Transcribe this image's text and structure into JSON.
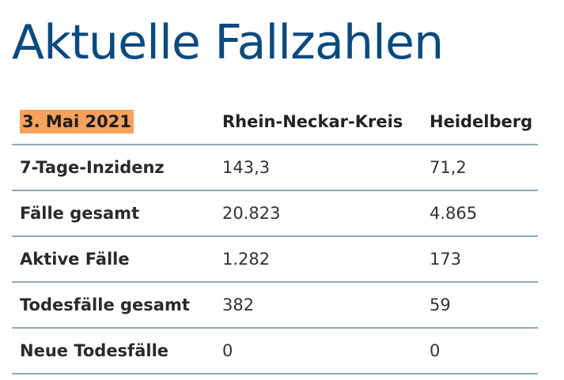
{
  "page": {
    "title": "Aktuelle Fallzahlen"
  },
  "table": {
    "date_label": "3. Mai 2021",
    "columns": [
      "Rhein-Neckar-Kreis",
      "Heidelberg"
    ],
    "rows": [
      {
        "label": "7-Tage-Inzidenz",
        "values": [
          "143,3",
          "71,2"
        ]
      },
      {
        "label": "Fälle gesamt",
        "values": [
          "20.823",
          "4.865"
        ]
      },
      {
        "label": "Aktive Fälle",
        "values": [
          "1.282",
          "173"
        ]
      },
      {
        "label": "Todesfälle gesamt",
        "values": [
          "382",
          "59"
        ]
      },
      {
        "label": "Neue Todesfälle",
        "values": [
          "0",
          "0"
        ]
      }
    ]
  },
  "colors": {
    "title": "#0b4a80",
    "date_highlight": "#f7a15a",
    "row_divider": "#8eaab8"
  }
}
